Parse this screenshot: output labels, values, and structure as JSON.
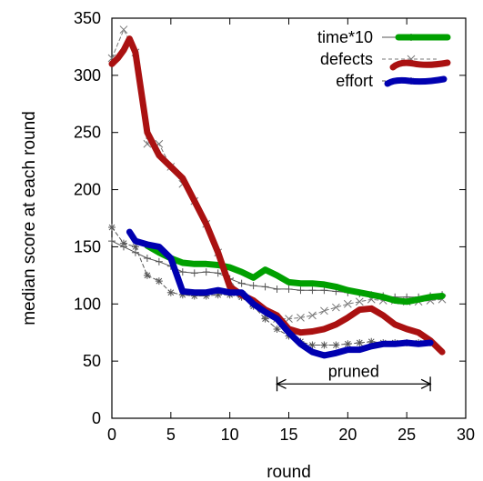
{
  "chart_data": {
    "type": "line",
    "xlabel": "round",
    "ylabel": "median score at each round",
    "xlim": [
      0,
      30
    ],
    "ylim": [
      0,
      350
    ],
    "xticks": [
      0,
      5,
      10,
      15,
      20,
      25,
      30
    ],
    "yticks": [
      0,
      50,
      100,
      150,
      200,
      250,
      300,
      350
    ],
    "grid": false,
    "legend_position": "top-right",
    "series": [
      {
        "name": "time*10",
        "color": "#00a000",
        "style": "thick",
        "x": [
          3,
          4,
          5,
          6,
          7,
          8,
          9,
          10,
          11,
          12,
          13,
          14,
          15,
          16,
          17,
          18,
          19,
          20,
          21,
          22,
          23,
          24,
          25,
          26,
          27,
          28
        ],
        "y": [
          151,
          145,
          140,
          136,
          135,
          135,
          134,
          132,
          128,
          123,
          130,
          125,
          119,
          118,
          118,
          117,
          115,
          112,
          110,
          108,
          106,
          103,
          102,
          104,
          106,
          107
        ]
      },
      {
        "name": "",
        "color": "#555555",
        "style": "thin-solid",
        "marker": "plus",
        "x": [
          0,
          1,
          2,
          3,
          4,
          5,
          6,
          7,
          8,
          9,
          10,
          11,
          12,
          13,
          14,
          15,
          16,
          17,
          18,
          19,
          20,
          21,
          22,
          23,
          24,
          25,
          26,
          27,
          28
        ],
        "y": [
          155,
          150,
          145,
          140,
          137,
          133,
          128,
          127,
          128,
          127,
          122,
          118,
          116,
          115,
          113,
          113,
          112,
          112,
          112,
          111,
          110,
          109,
          108,
          107,
          106,
          106,
          106,
          107,
          108
        ]
      },
      {
        "name": "defects",
        "color": "#aa1111",
        "style": "thick",
        "x": [
          0,
          0.5,
          1,
          1.5,
          2,
          3,
          4,
          5,
          6,
          7,
          8,
          9,
          10,
          11,
          12,
          13,
          14,
          15,
          16,
          17,
          18,
          19,
          20,
          21,
          22,
          23,
          24,
          25,
          26,
          27,
          28
        ],
        "y": [
          310,
          315,
          322,
          332,
          320,
          250,
          230,
          220,
          210,
          190,
          170,
          145,
          115,
          108,
          103,
          95,
          90,
          78,
          75,
          76,
          78,
          82,
          88,
          95,
          96,
          90,
          82,
          78,
          75,
          68,
          58
        ]
      },
      {
        "name": "",
        "color": "#777777",
        "style": "thin-dashed",
        "marker": "x",
        "x": [
          0,
          1,
          2,
          3,
          4,
          5,
          6,
          7,
          8,
          9,
          10,
          11,
          12,
          13,
          14,
          15,
          16,
          17,
          18,
          19,
          20,
          21,
          22,
          23,
          24,
          25,
          26,
          27,
          28
        ],
        "y": [
          315,
          340,
          320,
          240,
          240,
          220,
          205,
          190,
          170,
          145,
          120,
          108,
          100,
          90,
          87,
          87,
          88,
          90,
          94,
          97,
          100,
          102,
          104,
          103,
          103,
          102,
          102,
          103,
          104
        ]
      },
      {
        "name": "effort",
        "color": "#0000b0",
        "style": "thick",
        "x": [
          1.5,
          2,
          3,
          4,
          5,
          6,
          7,
          8,
          9,
          10,
          11,
          12,
          13,
          14,
          15,
          16,
          17,
          18,
          19,
          20,
          21,
          22,
          23,
          24,
          25,
          26,
          27
        ],
        "y": [
          163,
          155,
          152,
          150,
          140,
          111,
          110,
          110,
          112,
          110,
          110,
          100,
          93,
          87,
          75,
          65,
          58,
          55,
          57,
          60,
          60,
          63,
          65,
          65,
          66,
          65,
          66
        ]
      },
      {
        "name": "",
        "color": "#555555",
        "style": "thin-dashed",
        "marker": "star",
        "x": [
          0,
          1,
          2,
          3,
          4,
          5,
          6,
          7,
          8,
          9,
          10,
          11,
          12,
          13,
          14,
          15,
          16,
          17,
          18,
          19,
          20,
          21,
          22,
          23,
          24,
          25,
          26,
          27
        ],
        "y": [
          167,
          153,
          150,
          125,
          120,
          110,
          108,
          107,
          107,
          108,
          108,
          106,
          98,
          87,
          78,
          72,
          67,
          64,
          64,
          64,
          65,
          66,
          67,
          66,
          66,
          66,
          66,
          66
        ]
      }
    ],
    "annotations": [
      {
        "text": "pruned",
        "x_start": 14,
        "x_end": 27,
        "y": 30
      }
    ]
  }
}
